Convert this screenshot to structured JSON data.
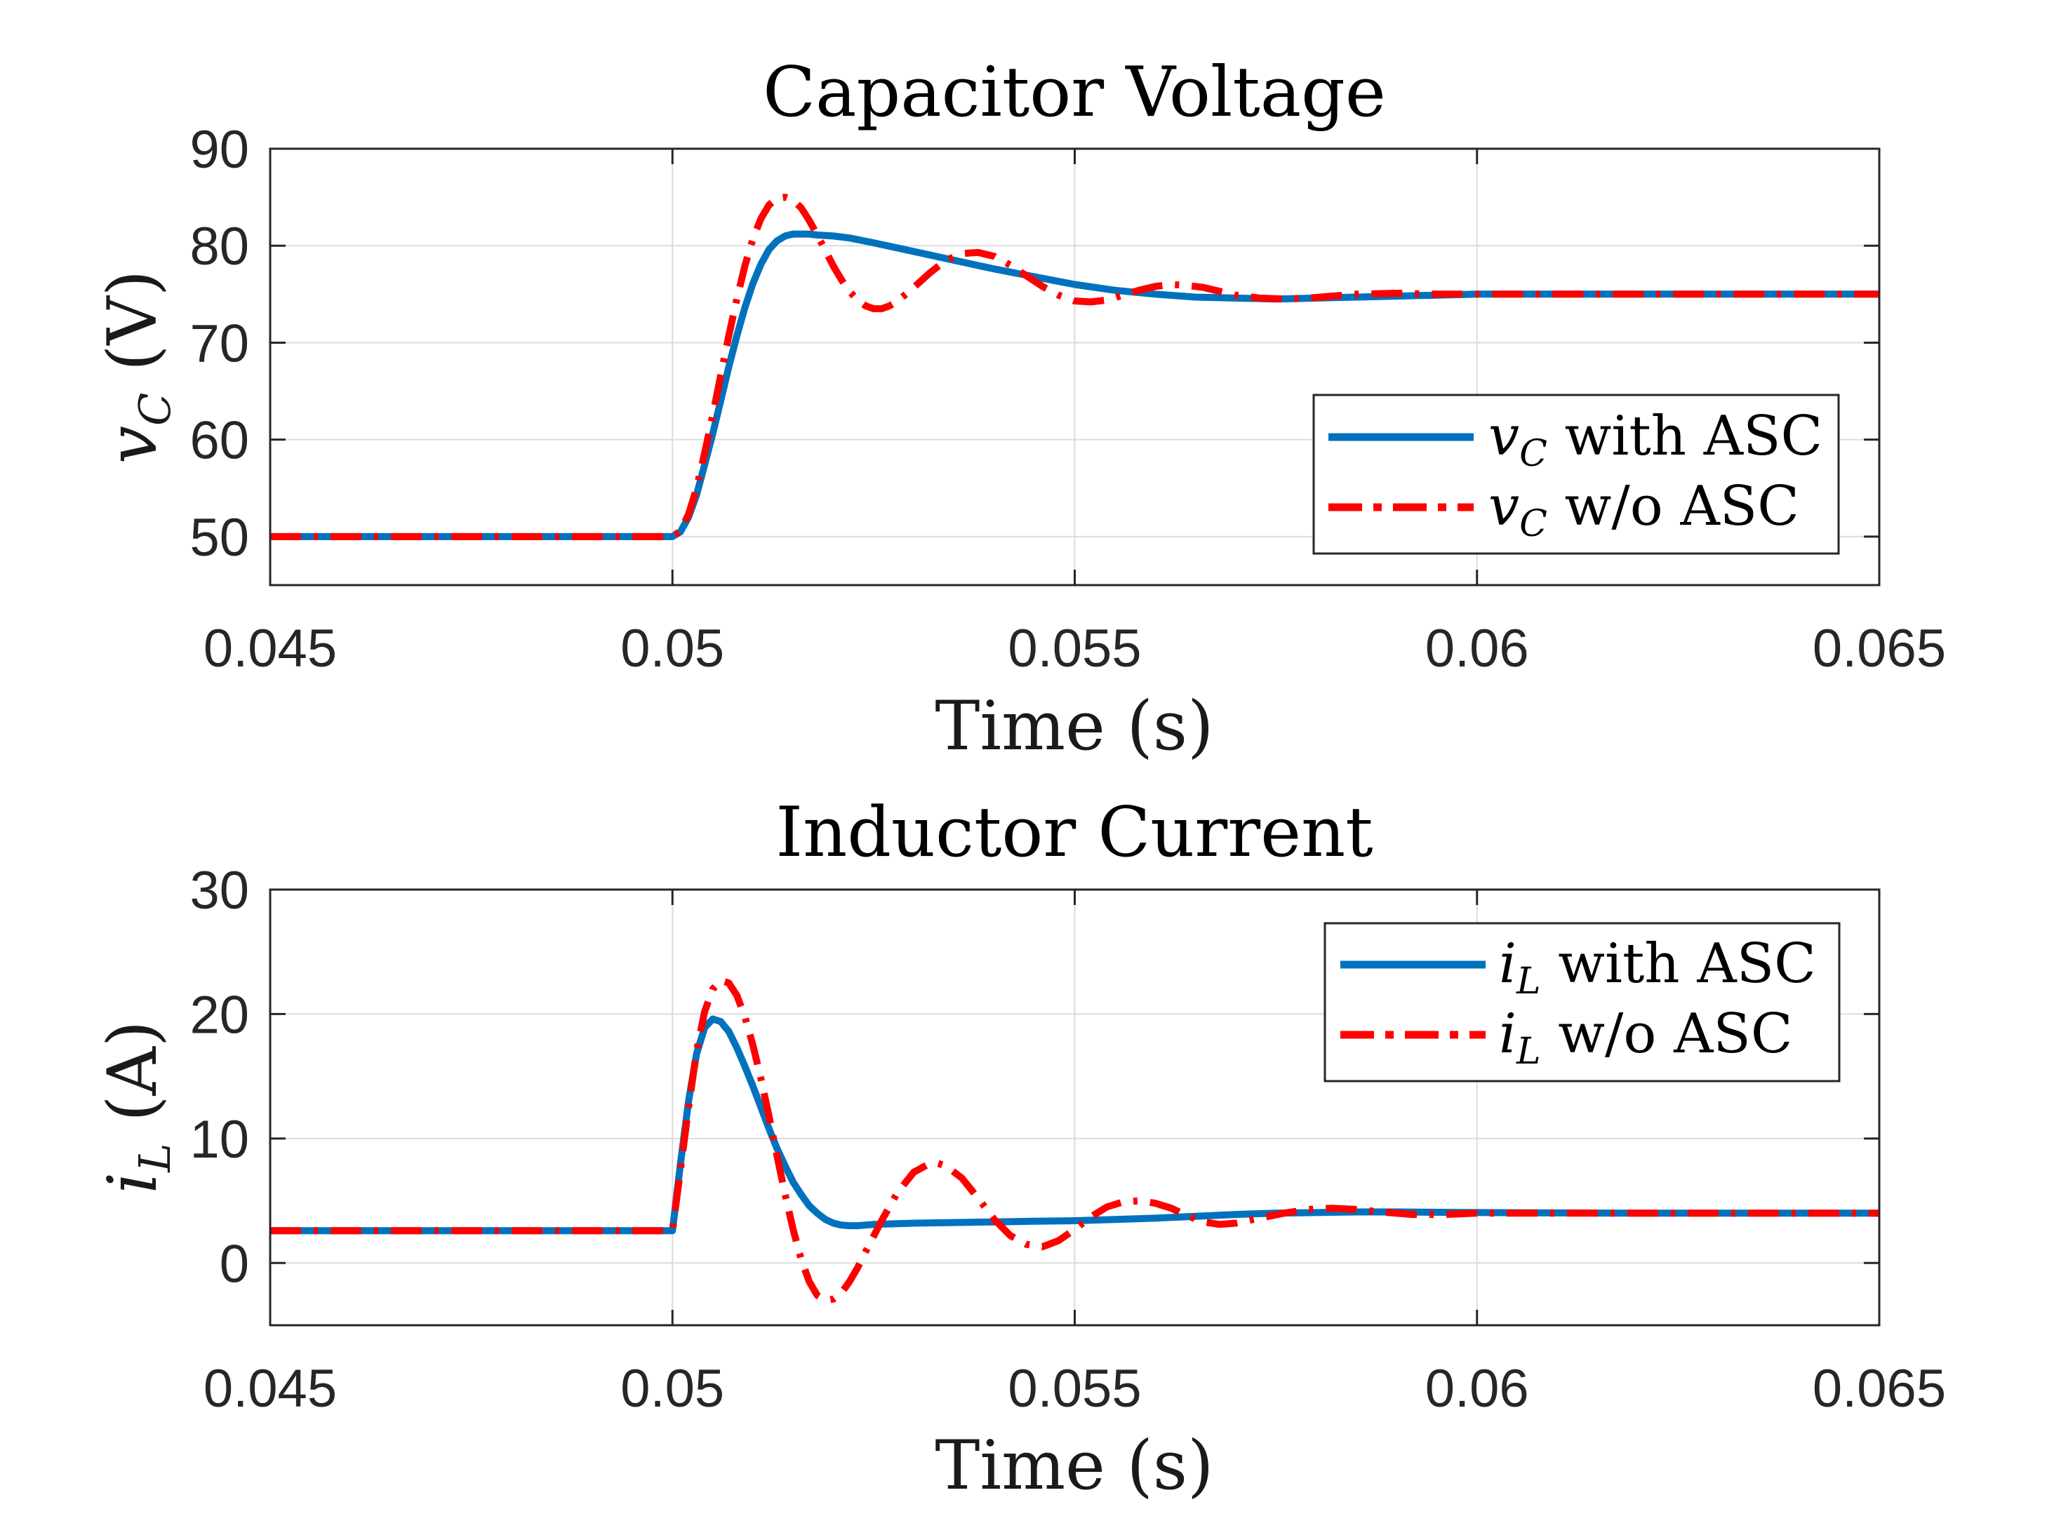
{
  "chart_data": [
    {
      "type": "line",
      "title": "Capacitor Voltage",
      "xlabel": "Time (s)",
      "ylabel": {
        "var": "v",
        "sub": "C",
        "unit": " (V)"
      },
      "xlim": [
        0.045,
        0.065
      ],
      "ylim": [
        45,
        90
      ],
      "xticks": [
        0.045,
        0.05,
        0.055,
        0.06,
        0.065
      ],
      "xtick_labels": [
        "0.045",
        "0.05",
        "0.055",
        "0.06",
        "0.065"
      ],
      "yticks": [
        50,
        60,
        70,
        80,
        90
      ],
      "ytick_labels": [
        "50",
        "60",
        "70",
        "80",
        "90"
      ],
      "grid": true,
      "legend_position": "right",
      "series": [
        {
          "name": "with ASC",
          "var": "v",
          "sub": "C",
          "suffix": " with ASC",
          "color": "#0072BD",
          "style": "solid",
          "x": [
            0.045,
            0.05,
            0.0501,
            0.0502,
            0.0503,
            0.0504,
            0.0505,
            0.0506,
            0.0507,
            0.0508,
            0.0509,
            0.051,
            0.0511,
            0.0512,
            0.0513,
            0.0514,
            0.0515,
            0.0516,
            0.0517,
            0.0518,
            0.052,
            0.0522,
            0.0525,
            0.053,
            0.0535,
            0.054,
            0.0545,
            0.055,
            0.0555,
            0.056,
            0.0565,
            0.057,
            0.0575,
            0.058,
            0.059,
            0.06,
            0.062,
            0.065
          ],
          "y": [
            50,
            50,
            50.5,
            52,
            54.3,
            57.4,
            60.6,
            64,
            67.5,
            70.7,
            73.6,
            76.1,
            78.1,
            79.6,
            80.5,
            81,
            81.2,
            81.2,
            81.2,
            81.1,
            81,
            80.8,
            80.3,
            79.4,
            78.5,
            77.6,
            76.8,
            76,
            75.4,
            75,
            74.7,
            74.6,
            74.5,
            74.6,
            74.8,
            75,
            75,
            75
          ]
        },
        {
          "name": "w/o ASC",
          "var": "v",
          "sub": "C",
          "suffix": " w/o ASC",
          "color": "#FF0000",
          "style": "dashdot",
          "x": [
            0.045,
            0.05,
            0.0501,
            0.0502,
            0.0503,
            0.0504,
            0.0505,
            0.0506,
            0.0507,
            0.0508,
            0.0509,
            0.051,
            0.0511,
            0.0512,
            0.0513,
            0.0514,
            0.0515,
            0.0516,
            0.0517,
            0.0518,
            0.0519,
            0.052,
            0.0521,
            0.0522,
            0.0523,
            0.0524,
            0.0525,
            0.0526,
            0.0527,
            0.0528,
            0.053,
            0.0532,
            0.0534,
            0.0536,
            0.0538,
            0.054,
            0.0542,
            0.0544,
            0.0546,
            0.0548,
            0.055,
            0.0552,
            0.0554,
            0.0556,
            0.0558,
            0.056,
            0.0562,
            0.0564,
            0.0566,
            0.0568,
            0.057,
            0.0573,
            0.0576,
            0.0579,
            0.0582,
            0.0585,
            0.059,
            0.0595,
            0.06,
            0.062,
            0.065
          ],
          "y": [
            50,
            50,
            50.6,
            52.3,
            55,
            58.6,
            62.5,
            66.6,
            70.7,
            74.5,
            77.9,
            80.7,
            82.8,
            84.2,
            84.9,
            85,
            84.7,
            83.9,
            82.6,
            81.1,
            79.5,
            77.9,
            76.5,
            75.3,
            74.4,
            73.8,
            73.5,
            73.5,
            73.8,
            74.3,
            75.7,
            77.2,
            78.5,
            79.2,
            79.3,
            78.9,
            78,
            76.9,
            75.8,
            74.9,
            74.3,
            74.2,
            74.4,
            74.9,
            75.4,
            75.8,
            76,
            75.9,
            75.7,
            75.3,
            74.9,
            74.6,
            74.5,
            74.6,
            74.8,
            75,
            75.1,
            75,
            75,
            75,
            75
          ]
        }
      ]
    },
    {
      "type": "line",
      "title": "Inductor Current",
      "xlabel": "Time (s)",
      "ylabel": {
        "var": "i",
        "sub": "L",
        "unit": " (A)"
      },
      "xlim": [
        0.045,
        0.065
      ],
      "ylim": [
        -5,
        30
      ],
      "xticks": [
        0.045,
        0.05,
        0.055,
        0.06,
        0.065
      ],
      "xtick_labels": [
        "0.045",
        "0.05",
        "0.055",
        "0.06",
        "0.065"
      ],
      "yticks": [
        0,
        10,
        20,
        30
      ],
      "ytick_labels": [
        "0",
        "10",
        "20",
        "30"
      ],
      "grid": true,
      "legend_position": "top-right",
      "series": [
        {
          "name": "with ASC",
          "var": "i",
          "sub": "L",
          "suffix": " with ASC",
          "color": "#0072BD",
          "style": "solid",
          "x": [
            0.045,
            0.05,
            0.0501,
            0.0502,
            0.0503,
            0.0504,
            0.0505,
            0.0506,
            0.0507,
            0.0508,
            0.0509,
            0.051,
            0.0511,
            0.0512,
            0.0513,
            0.0514,
            0.0515,
            0.0516,
            0.0517,
            0.0518,
            0.0519,
            0.052,
            0.0521,
            0.0522,
            0.0523,
            0.0524,
            0.0525,
            0.053,
            0.0535,
            0.054,
            0.0545,
            0.055,
            0.0555,
            0.056,
            0.0565,
            0.057,
            0.0575,
            0.058,
            0.0585,
            0.059,
            0.06,
            0.062,
            0.065
          ],
          "y": [
            2.6,
            2.6,
            8,
            13,
            16.8,
            18.9,
            19.6,
            19.4,
            18.6,
            17.3,
            15.8,
            14.2,
            12.5,
            10.8,
            9.2,
            7.8,
            6.5,
            5.5,
            4.6,
            4,
            3.5,
            3.2,
            3.05,
            3,
            3,
            3.05,
            3.1,
            3.2,
            3.25,
            3.3,
            3.35,
            3.4,
            3.5,
            3.6,
            3.75,
            3.9,
            4,
            4.05,
            4.1,
            4.1,
            4.05,
            4,
            4
          ]
        },
        {
          "name": "w/o ASC",
          "var": "i",
          "sub": "L",
          "suffix": " w/o ASC",
          "color": "#FF0000",
          "style": "dashdot",
          "x": [
            0.045,
            0.05,
            0.0501,
            0.0502,
            0.0503,
            0.0504,
            0.0505,
            0.0506,
            0.0507,
            0.0508,
            0.0509,
            0.051,
            0.0511,
            0.0512,
            0.0513,
            0.0514,
            0.0515,
            0.0516,
            0.0517,
            0.0518,
            0.0519,
            0.052,
            0.0521,
            0.0522,
            0.0523,
            0.0524,
            0.0526,
            0.0528,
            0.053,
            0.0532,
            0.0533,
            0.0534,
            0.0536,
            0.0538,
            0.054,
            0.0542,
            0.0544,
            0.0546,
            0.0548,
            0.055,
            0.0552,
            0.0554,
            0.0556,
            0.0558,
            0.056,
            0.0562,
            0.0564,
            0.0566,
            0.0568,
            0.057,
            0.0573,
            0.0576,
            0.0579,
            0.0582,
            0.0585,
            0.0588,
            0.0592,
            0.0596,
            0.06,
            0.062,
            0.065
          ],
          "y": [
            2.6,
            2.6,
            7.5,
            12.5,
            17,
            20.2,
            22,
            22.7,
            22.5,
            21.5,
            19.8,
            17.5,
            14.8,
            11.8,
            8.6,
            5.5,
            2.7,
            0.3,
            -1.5,
            -2.6,
            -3,
            -2.9,
            -2.4,
            -1.5,
            -0.4,
            0.9,
            3.4,
            5.7,
            7.3,
            8,
            8,
            7.8,
            6.8,
            5.2,
            3.5,
            2.2,
            1.5,
            1.3,
            1.8,
            2.7,
            3.7,
            4.5,
            4.9,
            5,
            4.8,
            4.4,
            3.8,
            3.3,
            3.1,
            3.2,
            3.6,
            4,
            4.3,
            4.4,
            4.3,
            4.1,
            3.9,
            3.9,
            4,
            4,
            4
          ]
        }
      ]
    }
  ]
}
